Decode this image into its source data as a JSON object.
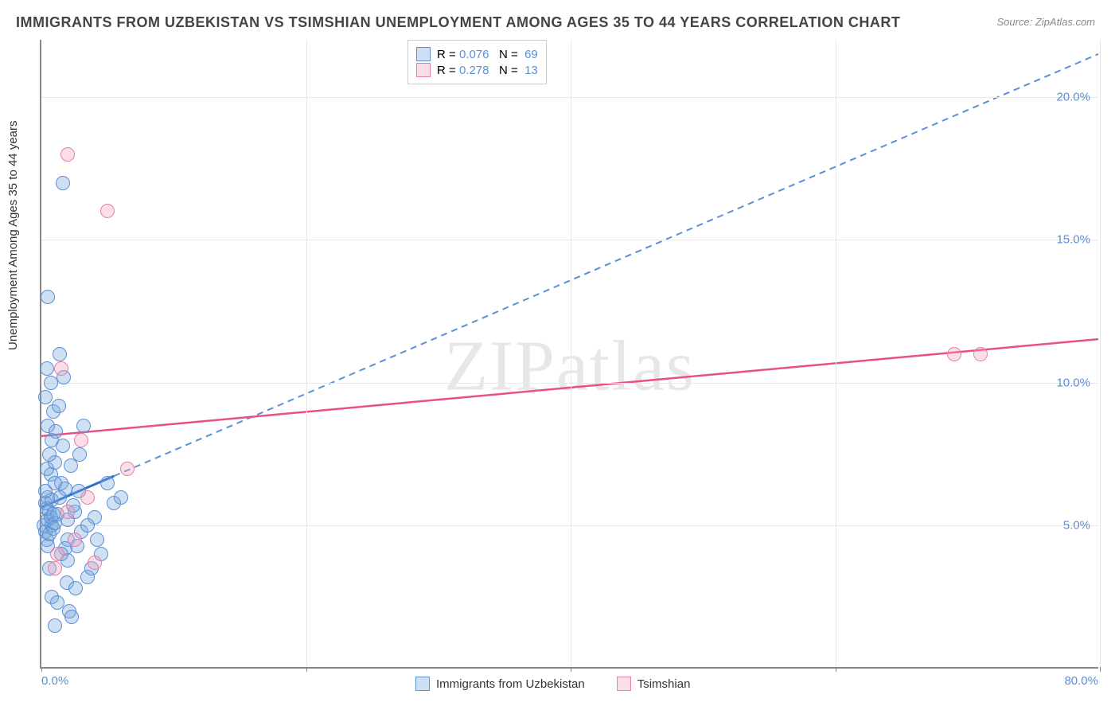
{
  "chart": {
    "type": "scatter",
    "title": "IMMIGRANTS FROM UZBEKISTAN VS TSIMSHIAN UNEMPLOYMENT AMONG AGES 35 TO 44 YEARS CORRELATION CHART",
    "source": "Source: ZipAtlas.com",
    "ylabel": "Unemployment Among Ages 35 to 44 years",
    "watermark": "ZIPatlas",
    "xlim": [
      0,
      80
    ],
    "ylim": [
      0,
      22
    ],
    "x_ticks": [
      0,
      20,
      40,
      60,
      80
    ],
    "x_tick_labels": [
      "0.0%",
      "",
      "",
      "",
      "80.0%"
    ],
    "y_ticks": [
      5,
      10,
      15,
      20
    ],
    "y_tick_labels": [
      "5.0%",
      "10.0%",
      "15.0%",
      "20.0%"
    ],
    "grid_color": "#e8e8e8",
    "background_color": "#ffffff",
    "point_radius": 9,
    "series": {
      "uzbekistan": {
        "label": "Immigrants from Uzbekistan",
        "fill": "rgba(120,165,220,0.35)",
        "stroke": "#5b8fd6",
        "R": "0.076",
        "N": "69",
        "trend": {
          "x1": 0,
          "y1": 5.6,
          "x2": 5.5,
          "y2": 6.7,
          "dash_x2": 80,
          "dash_y2": 21.5,
          "solid_color": "#2f6fc7",
          "dash_color": "#5b8fd6",
          "width": 2
        },
        "points": [
          [
            0.2,
            5.0
          ],
          [
            0.3,
            4.8
          ],
          [
            0.5,
            5.2
          ],
          [
            0.4,
            4.5
          ],
          [
            0.6,
            5.5
          ],
          [
            0.8,
            5.0
          ],
          [
            0.3,
            5.8
          ],
          [
            0.5,
            6.0
          ],
          [
            0.7,
            5.3
          ],
          [
            0.9,
            4.9
          ],
          [
            0.4,
            5.6
          ],
          [
            0.6,
            4.7
          ],
          [
            0.8,
            5.9
          ],
          [
            1.0,
            5.1
          ],
          [
            0.5,
            4.3
          ],
          [
            1.2,
            5.4
          ],
          [
            0.3,
            6.2
          ],
          [
            1.5,
            6.5
          ],
          [
            0.7,
            6.8
          ],
          [
            1.8,
            6.3
          ],
          [
            0.4,
            7.0
          ],
          [
            2.0,
            5.2
          ],
          [
            1.0,
            7.2
          ],
          [
            0.6,
            7.5
          ],
          [
            2.2,
            7.1
          ],
          [
            0.8,
            8.0
          ],
          [
            1.4,
            6.0
          ],
          [
            0.5,
            8.5
          ],
          [
            2.5,
            5.5
          ],
          [
            0.9,
            9.0
          ],
          [
            1.6,
            7.8
          ],
          [
            0.3,
            9.5
          ],
          [
            1.1,
            8.3
          ],
          [
            2.0,
            4.5
          ],
          [
            0.7,
            10.0
          ],
          [
            1.3,
            9.2
          ],
          [
            0.4,
            10.5
          ],
          [
            2.8,
            6.2
          ],
          [
            1.7,
            10.2
          ],
          [
            0.6,
            3.5
          ],
          [
            3.0,
            4.8
          ],
          [
            1.9,
            3.0
          ],
          [
            0.8,
            2.5
          ],
          [
            3.5,
            3.2
          ],
          [
            2.1,
            2.0
          ],
          [
            1.0,
            1.5
          ],
          [
            4.0,
            5.3
          ],
          [
            2.3,
            1.8
          ],
          [
            1.2,
            2.3
          ],
          [
            4.5,
            4.0
          ],
          [
            2.6,
            2.8
          ],
          [
            1.4,
            11.0
          ],
          [
            0.5,
            13.0
          ],
          [
            3.2,
            8.5
          ],
          [
            1.6,
            17.0
          ],
          [
            5.0,
            6.5
          ],
          [
            2.9,
            7.5
          ],
          [
            1.8,
            4.2
          ],
          [
            5.5,
            5.8
          ],
          [
            3.8,
            3.5
          ],
          [
            2.0,
            3.8
          ],
          [
            6.0,
            6.0
          ],
          [
            4.2,
            4.5
          ],
          [
            2.4,
            5.7
          ],
          [
            3.5,
            5.0
          ],
          [
            1.5,
            4.0
          ],
          [
            2.7,
            4.3
          ],
          [
            1.0,
            6.5
          ],
          [
            0.9,
            5.4
          ]
        ]
      },
      "tsimshian": {
        "label": "Tsimshian",
        "fill": "rgba(240,160,190,0.35)",
        "stroke": "#e87fa8",
        "R": "0.278",
        "N": "13",
        "trend": {
          "x1": 0,
          "y1": 8.1,
          "x2": 80,
          "y2": 11.5,
          "solid_color": "#e94f88",
          "width": 2.5
        },
        "points": [
          [
            2.0,
            18.0
          ],
          [
            5.0,
            16.0
          ],
          [
            1.5,
            10.5
          ],
          [
            3.0,
            8.0
          ],
          [
            6.5,
            7.0
          ],
          [
            2.5,
            4.5
          ],
          [
            4.0,
            3.7
          ],
          [
            1.0,
            3.5
          ],
          [
            3.5,
            6.0
          ],
          [
            69.0,
            11.0
          ],
          [
            71.0,
            11.0
          ],
          [
            2.0,
            5.5
          ],
          [
            1.2,
            4.0
          ]
        ]
      }
    },
    "legend_top": {
      "rows": [
        {
          "swatch_fill": "rgba(120,165,220,0.35)",
          "swatch_stroke": "#5b8fd6",
          "r_label": "R =",
          "r_value": "0.076",
          "n_label": "N =",
          "n_value": "69"
        },
        {
          "swatch_fill": "rgba(240,160,190,0.35)",
          "swatch_stroke": "#e87fa8",
          "r_label": "R =",
          "r_value": "0.278",
          "n_label": "N =",
          "n_value": "13"
        }
      ]
    }
  }
}
